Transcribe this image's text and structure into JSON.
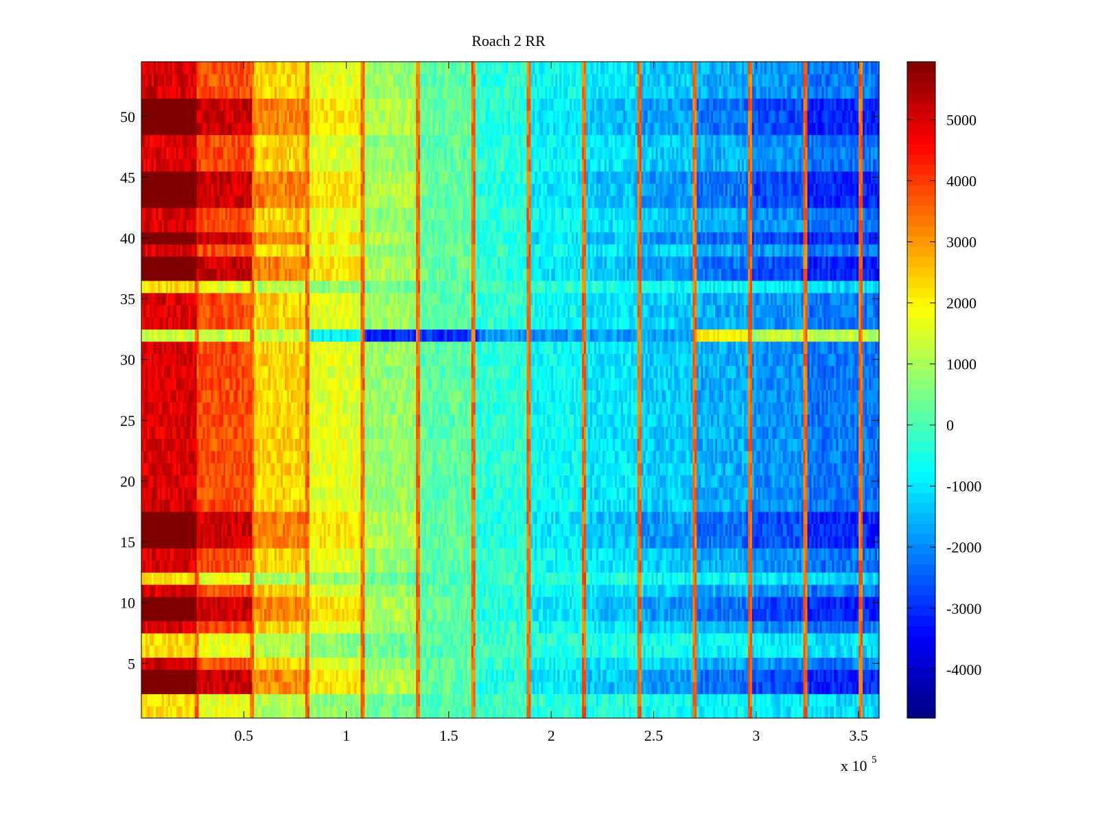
{
  "chart_data": {
    "type": "heatmap",
    "title": "Roach 2 RR",
    "xlabel": "",
    "ylabel": "",
    "x_multiplier_label": "x 10",
    "x_multiplier_exponent": "5",
    "xlim": [
      0,
      3.6
    ],
    "ylim": [
      0.5,
      54.5
    ],
    "x_ticks": [
      {
        "value": 0.5,
        "label": "0.5"
      },
      {
        "value": 1,
        "label": "1"
      },
      {
        "value": 1.5,
        "label": "1.5"
      },
      {
        "value": 2,
        "label": "2"
      },
      {
        "value": 2.5,
        "label": "2.5"
      },
      {
        "value": 3,
        "label": "3"
      },
      {
        "value": 3.5,
        "label": "3.5"
      }
    ],
    "y_ticks": [
      {
        "value": 5,
        "label": "5"
      },
      {
        "value": 10,
        "label": "10"
      },
      {
        "value": 15,
        "label": "15"
      },
      {
        "value": 20,
        "label": "20"
      },
      {
        "value": 25,
        "label": "25"
      },
      {
        "value": 30,
        "label": "30"
      },
      {
        "value": 35,
        "label": "35"
      },
      {
        "value": 40,
        "label": "40"
      },
      {
        "value": 45,
        "label": "45"
      },
      {
        "value": 50,
        "label": "50"
      }
    ],
    "colorbar": {
      "colormap": "jet",
      "range": [
        -4800,
        5950
      ],
      "ticks": [
        {
          "value": 5000,
          "label": "5000"
        },
        {
          "value": 4000,
          "label": "4000"
        },
        {
          "value": 3000,
          "label": "3000"
        },
        {
          "value": 2000,
          "label": "2000"
        },
        {
          "value": 1000,
          "label": "1000"
        },
        {
          "value": 0,
          "label": "0"
        },
        {
          "value": -1000,
          "label": "-1000"
        },
        {
          "value": -2000,
          "label": "-2000"
        },
        {
          "value": -3000,
          "label": "-3000"
        },
        {
          "value": -4000,
          "label": "-4000"
        }
      ]
    },
    "rows": 54,
    "columns": 360,
    "column_segments": [
      {
        "x_start": 0.0,
        "x_end": 0.27,
        "base_value": 5000
      },
      {
        "x_start": 0.27,
        "x_end": 0.54,
        "base_value": 3800
      },
      {
        "x_start": 0.54,
        "x_end": 0.81,
        "base_value": 2400
      },
      {
        "x_start": 0.81,
        "x_end": 1.08,
        "base_value": 1600
      },
      {
        "x_start": 1.08,
        "x_end": 1.35,
        "base_value": 800
      },
      {
        "x_start": 1.35,
        "x_end": 1.62,
        "base_value": 200
      },
      {
        "x_start": 1.62,
        "x_end": 1.89,
        "base_value": -300
      },
      {
        "x_start": 1.89,
        "x_end": 2.16,
        "base_value": -700
      },
      {
        "x_start": 2.16,
        "x_end": 2.43,
        "base_value": -1000
      },
      {
        "x_start": 2.43,
        "x_end": 2.7,
        "base_value": -1300
      },
      {
        "x_start": 2.7,
        "x_end": 2.97,
        "base_value": -1600
      },
      {
        "x_start": 2.97,
        "x_end": 3.24,
        "base_value": -1900
      },
      {
        "x_start": 3.24,
        "x_end": 3.6,
        "base_value": -2200
      }
    ],
    "stripe_columns_x": [
      0.27,
      0.54,
      0.81,
      1.08,
      1.35,
      1.62,
      1.89,
      2.16,
      2.43,
      2.7,
      2.97,
      3.24,
      3.51
    ],
    "row_intensity_high": [
      3,
      4,
      9,
      10,
      15,
      16,
      17,
      37,
      38,
      40,
      43,
      44,
      45,
      49,
      50,
      51
    ],
    "row_intensity_low": [
      1,
      2,
      6,
      7,
      12,
      32,
      36
    ],
    "anomaly_row": 32
  }
}
